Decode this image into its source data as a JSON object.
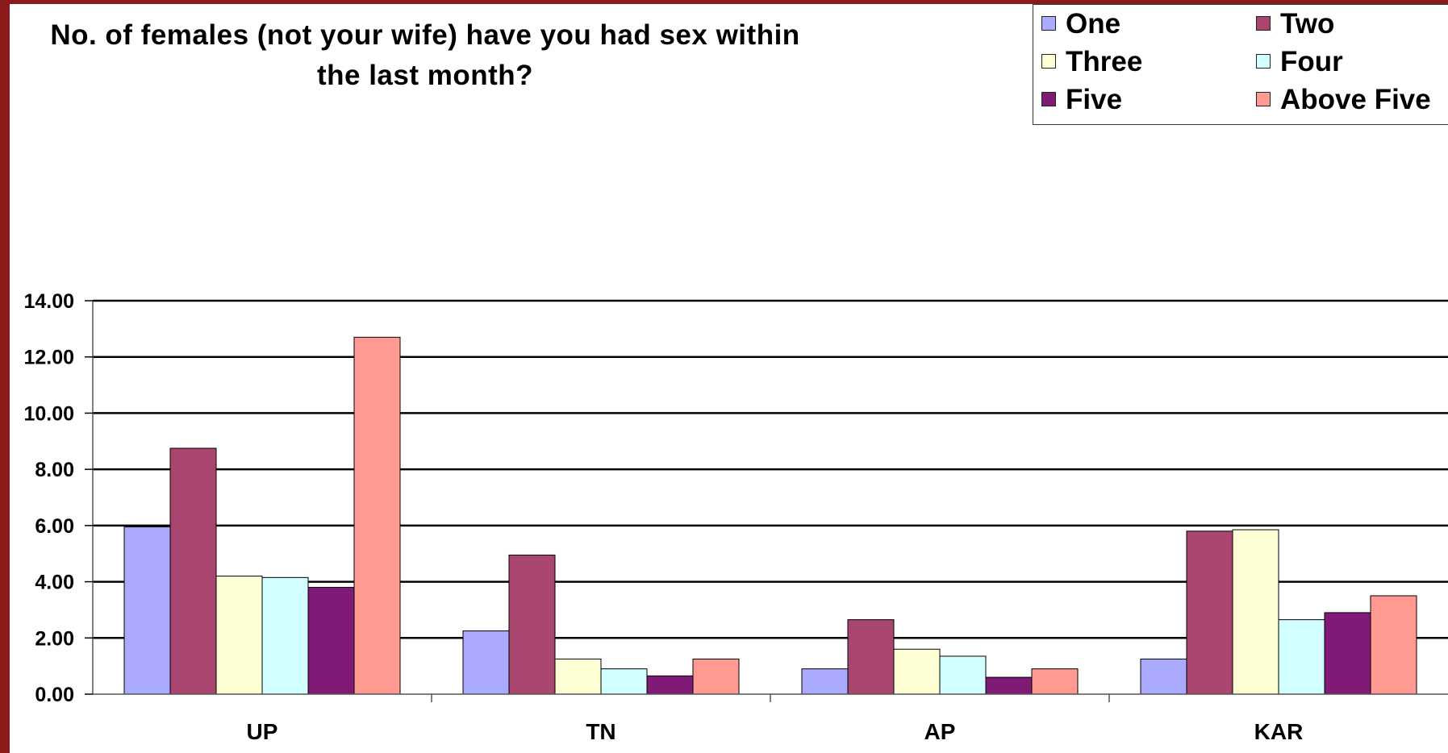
{
  "chart_data": {
    "type": "bar",
    "title_lines": [
      "No. of females (not your wife) have you had sex within",
      "the last month?"
    ],
    "categories": [
      "UP",
      "TN",
      "AP",
      "KAR"
    ],
    "series": [
      {
        "name": "One",
        "color": "#aaaaff",
        "values": [
          5.95,
          2.25,
          0.9,
          1.25
        ]
      },
      {
        "name": "Two",
        "color": "#a84670",
        "values": [
          8.75,
          4.95,
          2.65,
          5.8
        ]
      },
      {
        "name": "Three",
        "color": "#ffffd5",
        "values": [
          4.2,
          1.25,
          1.6,
          5.85
        ]
      },
      {
        "name": "Four",
        "color": "#d2ffff",
        "values": [
          4.15,
          0.9,
          1.35,
          2.65
        ]
      },
      {
        "name": "Five",
        "color": "#7f1a77",
        "values": [
          3.8,
          0.65,
          0.6,
          2.9
        ]
      },
      {
        "name": "Above Five",
        "color": "#ff9a92",
        "values": [
          12.7,
          1.25,
          0.9,
          3.5
        ]
      }
    ],
    "yticks": [
      "0.00",
      "2.00",
      "4.00",
      "6.00",
      "8.00",
      "10.00",
      "12.00",
      "14.00"
    ],
    "ylim": [
      0,
      14
    ],
    "grid": true,
    "legend_position": "top-right"
  }
}
